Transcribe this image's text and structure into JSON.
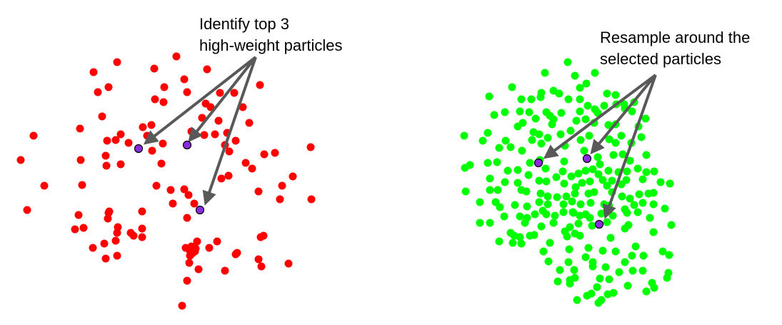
{
  "left_panel": {
    "caption_line1": "Identify top 3",
    "caption_line2": "high-weight particles",
    "particle_color": "#ff0000",
    "particle_count": 110,
    "selected_particle_color": "#8a2be2"
  },
  "right_panel": {
    "caption_line1": "Resample around the",
    "caption_line2": "selected particles",
    "particle_color": "#00ff00",
    "particle_count": 250,
    "selected_particle_color": "#8a2be2"
  },
  "arrow_color": "#595959"
}
